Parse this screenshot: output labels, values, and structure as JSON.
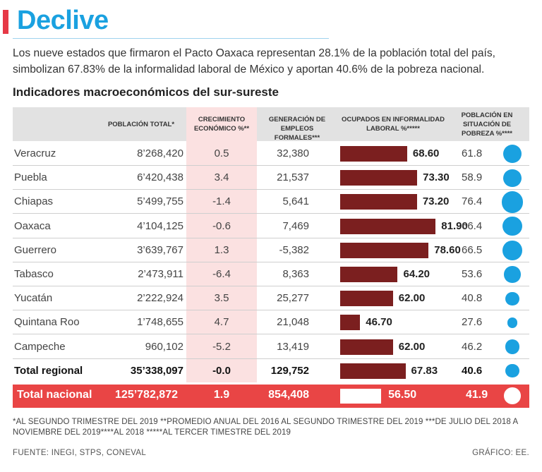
{
  "header": {
    "title": "Declive",
    "subtitle": "Los nueve estados que firmaron el Pacto Oaxaca representan 28.1% de la población total del país, simbolizan 67.83% de la informalidad laboral de México y aportan 40.6% de la pobreza nacional."
  },
  "section_title": "Indicadores macroeconómicos del sur-sureste",
  "columns": {
    "poblacion": "POBLACIÓN TOTAL*",
    "crecimiento": "CRECIMIENTO ECONÓMICO %**",
    "empleos": "GENERACIÓN DE EMPLEOS FORMALES***",
    "informalidad": "OCUPADOS EN INFORMALIDAD LABORAL %*****",
    "pobreza": "POBLACIÓN EN SITUACIÓN DE POBREZA %****"
  },
  "rows": [
    {
      "state": "Veracruz",
      "poblacion": "8’268,420",
      "crecimiento": "0.5",
      "empleos": "32,380",
      "informalidad": "68.60",
      "pobreza": "61.8"
    },
    {
      "state": "Puebla",
      "poblacion": "6’420,438",
      "crecimiento": "3.4",
      "empleos": "21,537",
      "informalidad": "73.30",
      "pobreza": "58.9"
    },
    {
      "state": "Chiapas",
      "poblacion": "5’499,755",
      "crecimiento": "-1.4",
      "empleos": "5,641",
      "informalidad": "73.20",
      "pobreza": "76.4"
    },
    {
      "state": "Oaxaca",
      "poblacion": "4’104,125",
      "crecimiento": "-0.6",
      "empleos": "7,469",
      "informalidad": "81.90",
      "pobreza": "66.4"
    },
    {
      "state": "Guerrero",
      "poblacion": "3’639,767",
      "crecimiento": "1.3",
      "empleos": "-5,382",
      "informalidad": "78.60",
      "pobreza": "66.5"
    },
    {
      "state": "Tabasco",
      "poblacion": "2’473,911",
      "crecimiento": "-6.4",
      "empleos": "8,363",
      "informalidad": "64.20",
      "pobreza": "53.6"
    },
    {
      "state": "Yucatán",
      "poblacion": "2’222,924",
      "crecimiento": "3.5",
      "empleos": "25,277",
      "informalidad": "62.00",
      "pobreza": "40.8"
    },
    {
      "state": "Quintana Roo",
      "poblacion": "1’748,655",
      "crecimiento": "4.7",
      "empleos": "21,048",
      "informalidad": "46.70",
      "pobreza": "27.6"
    },
    {
      "state": "Campeche",
      "poblacion": "960,102",
      "crecimiento": "-5.2",
      "empleos": "13,419",
      "informalidad": "62.00",
      "pobreza": "46.2"
    },
    {
      "state": "Total regional",
      "poblacion": "35’338,097",
      "crecimiento": "-0.0",
      "empleos": "129,752",
      "informalidad": "67.83",
      "pobreza": "40.6"
    }
  ],
  "nacional": {
    "state": "Total nacional",
    "poblacion": "125’782,872",
    "crecimiento": "1.9",
    "empleos": "854,408",
    "informalidad": "56.50",
    "pobreza": "41.9"
  },
  "notes": "*AL SEGUNDO TRIMESTRE DEL 2019 **PROMEDIO ANUAL DEL 2016 AL SEGUNDO TRIMESTRE DEL 2019 ***DE JULIO DEL 2018 A NOVIEMBRE DEL 2019****AL 2018 *****AL TERCER TIMESTRE DEL 2019",
  "footer": {
    "source": "FUENTE: INEGI, STPS, CONEVAL",
    "credit": "GRÁFICO: EE."
  },
  "colors": {
    "title": "#1aa1e0",
    "bar": "#7b1f1f",
    "circle": "#1aa1e0",
    "nacional_band": "#e94545",
    "accent": "#e63946",
    "pink_column": "#fbe1e1"
  },
  "chart_data": {
    "type": "table",
    "title": "Indicadores macroeconómicos del sur-sureste",
    "categories": [
      "Veracruz",
      "Puebla",
      "Chiapas",
      "Oaxaca",
      "Guerrero",
      "Tabasco",
      "Yucatán",
      "Quintana Roo",
      "Campeche",
      "Total regional",
      "Total nacional"
    ],
    "series": [
      {
        "name": "POBLACIÓN TOTAL*",
        "values": [
          8268420,
          6420438,
          5499755,
          4104125,
          3639767,
          2473911,
          2222924,
          1748655,
          960102,
          35338097,
          125782872
        ]
      },
      {
        "name": "CRECIMIENTO ECONÓMICO %**",
        "values": [
          0.5,
          3.4,
          -1.4,
          -0.6,
          1.3,
          -6.4,
          3.5,
          4.7,
          -5.2,
          -0.0,
          1.9
        ]
      },
      {
        "name": "GENERACIÓN DE EMPLEOS FORMALES***",
        "values": [
          32380,
          21537,
          5641,
          7469,
          -5382,
          8363,
          25277,
          21048,
          13419,
          129752,
          854408
        ]
      },
      {
        "name": "OCUPADOS EN INFORMALIDAD LABORAL %*****",
        "values": [
          68.6,
          73.3,
          73.2,
          81.9,
          78.6,
          64.2,
          62.0,
          46.7,
          62.0,
          67.83,
          56.5
        ]
      },
      {
        "name": "POBLACIÓN EN SITUACIÓN DE POBREZA %****",
        "values": [
          61.8,
          58.9,
          76.4,
          66.4,
          66.5,
          53.6,
          40.8,
          27.6,
          46.2,
          40.6,
          41.9
        ]
      }
    ]
  }
}
